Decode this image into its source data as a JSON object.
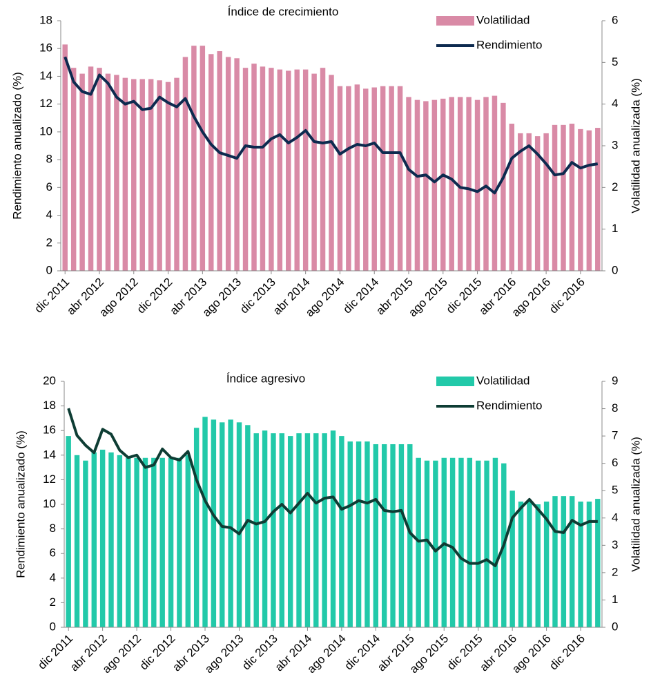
{
  "chart_data": [
    {
      "type": "bar_line",
      "title": "Índice de crecimiento",
      "ylabel": "Rendimiento anualizado (%)",
      "y2label": "Volatilidad anualizada (%)",
      "categories": [
        "dic 2011",
        null,
        null,
        null,
        "abr 2012",
        null,
        null,
        null,
        "ago 2012",
        null,
        null,
        null,
        "dic 2012",
        null,
        null,
        null,
        "abr 2013",
        null,
        null,
        null,
        "ago 2013",
        null,
        null,
        null,
        "dic 2013",
        null,
        null,
        null,
        "abr 2014",
        null,
        null,
        null,
        "ago 2014",
        null,
        null,
        null,
        "dic 2014",
        null,
        null,
        null,
        "abr 2015",
        null,
        null,
        null,
        "ago 2015",
        null,
        null,
        null,
        "dic 2015",
        null,
        null,
        null,
        "abr 2016",
        null,
        null,
        null,
        "ago 2016",
        null,
        null,
        null,
        "dic 2016",
        null,
        null
      ],
      "series": [
        {
          "name": "Volatilidad",
          "type": "bar",
          "axis": "y2",
          "color": "#d98aa6",
          "values": [
            5.43,
            4.87,
            4.73,
            4.9,
            4.87,
            4.73,
            4.7,
            4.63,
            4.6,
            4.6,
            4.6,
            4.57,
            4.53,
            4.63,
            5.13,
            5.4,
            5.4,
            5.2,
            5.27,
            5.13,
            5.1,
            4.87,
            4.97,
            4.9,
            4.87,
            4.83,
            4.8,
            4.83,
            4.83,
            4.73,
            4.87,
            4.7,
            4.43,
            4.43,
            4.47,
            4.37,
            4.4,
            4.43,
            4.43,
            4.43,
            4.17,
            4.1,
            4.07,
            4.1,
            4.13,
            4.17,
            4.17,
            4.17,
            4.1,
            4.17,
            4.2,
            4.03,
            3.53,
            3.3,
            3.3,
            3.23,
            3.3,
            3.5,
            3.5,
            3.53,
            3.4,
            3.37,
            3.43
          ]
        },
        {
          "name": "Rendimiento",
          "type": "line",
          "axis": "y",
          "color": "#0d2a4f",
          "values": [
            15.4,
            13.6,
            12.9,
            12.7,
            14.1,
            13.5,
            12.5,
            12.0,
            12.2,
            11.6,
            11.7,
            12.5,
            12.1,
            11.8,
            12.4,
            11.1,
            10.0,
            9.1,
            8.5,
            8.3,
            8.1,
            9.0,
            8.9,
            8.9,
            9.5,
            9.8,
            9.2,
            9.6,
            10.1,
            9.3,
            9.2,
            9.3,
            8.4,
            8.8,
            9.1,
            9.0,
            9.2,
            8.5,
            8.5,
            8.5,
            7.3,
            6.8,
            6.9,
            6.4,
            6.9,
            6.6,
            6.0,
            5.9,
            5.7,
            6.1,
            5.6,
            6.7,
            8.1,
            8.6,
            9.0,
            8.4,
            7.7,
            6.9,
            7.0,
            7.8,
            7.4,
            7.6,
            7.7
          ]
        }
      ],
      "ylim": [
        0,
        18
      ],
      "yticks": [
        0,
        2,
        4,
        6,
        8,
        10,
        12,
        14,
        16,
        18
      ],
      "y2lim": [
        0,
        6
      ],
      "y2ticks": [
        0,
        1,
        2,
        3,
        4,
        5,
        6
      ],
      "legend": "upper right",
      "grid": false
    },
    {
      "type": "bar_line",
      "title": "Índice agresivo",
      "ylabel": "Rendimiento anualizado (%)",
      "y2label": "Volatilidad anualizada (%)",
      "categories": [
        "dic 2011",
        null,
        null,
        null,
        "abr 2012",
        null,
        null,
        null,
        "ago 2012",
        null,
        null,
        null,
        "dic 2012",
        null,
        null,
        null,
        "abr 2013",
        null,
        null,
        null,
        "ago 2013",
        null,
        null,
        null,
        "dic 2013",
        null,
        null,
        null,
        "abr 2014",
        null,
        null,
        null,
        "ago 2014",
        null,
        null,
        null,
        "dic 2014",
        null,
        null,
        null,
        "abr 2015",
        null,
        null,
        null,
        "ago 2015",
        null,
        null,
        null,
        "dic 2015",
        null,
        null,
        null,
        "abr 2016",
        null,
        null,
        null,
        "ago 2016",
        null,
        null,
        null,
        "dic 2016",
        null,
        null
      ],
      "series": [
        {
          "name": "Volatilidad",
          "type": "bar",
          "axis": "y2",
          "color": "#22c9a9",
          "values": [
            7.0,
            6.3,
            6.1,
            6.4,
            6.5,
            6.4,
            6.3,
            6.2,
            6.2,
            6.2,
            6.2,
            6.2,
            6.2,
            6.2,
            6.3,
            7.3,
            7.7,
            7.6,
            7.5,
            7.6,
            7.5,
            7.4,
            7.1,
            7.2,
            7.1,
            7.1,
            7.0,
            7.1,
            7.1,
            7.1,
            7.1,
            7.2,
            7.0,
            6.8,
            6.8,
            6.8,
            6.7,
            6.7,
            6.7,
            6.7,
            6.7,
            6.2,
            6.1,
            6.1,
            6.2,
            6.2,
            6.2,
            6.2,
            6.1,
            6.1,
            6.2,
            6.0,
            5.0,
            4.6,
            4.6,
            4.5,
            4.6,
            4.8,
            4.8,
            4.8,
            4.6,
            4.6,
            4.7
          ]
        },
        {
          "name": "Rendimiento",
          "type": "line",
          "axis": "y",
          "color": "#0e3d34",
          "values": [
            17.8,
            15.6,
            14.8,
            14.2,
            16.1,
            15.7,
            14.4,
            13.8,
            14.0,
            13.0,
            13.2,
            14.5,
            13.8,
            13.6,
            14.3,
            12.0,
            10.3,
            9.1,
            8.2,
            8.1,
            7.6,
            8.7,
            8.4,
            8.6,
            9.4,
            10.0,
            9.3,
            10.1,
            10.9,
            10.1,
            10.5,
            10.6,
            9.6,
            9.9,
            10.3,
            10.1,
            10.4,
            9.5,
            9.4,
            9.5,
            7.7,
            7.0,
            7.1,
            6.2,
            6.8,
            6.5,
            5.6,
            5.2,
            5.2,
            5.5,
            5.0,
            6.7,
            8.9,
            9.7,
            10.4,
            9.6,
            8.8,
            7.8,
            7.7,
            8.7,
            8.3,
            8.6,
            8.6
          ]
        }
      ],
      "ylim": [
        0,
        20
      ],
      "yticks": [
        0,
        2,
        4,
        6,
        8,
        10,
        12,
        14,
        16,
        18,
        20
      ],
      "y2lim": [
        0,
        9
      ],
      "y2ticks": [
        0,
        1,
        2,
        3,
        4,
        5,
        6,
        7,
        8,
        9
      ],
      "legend": "upper right",
      "grid": false
    }
  ]
}
